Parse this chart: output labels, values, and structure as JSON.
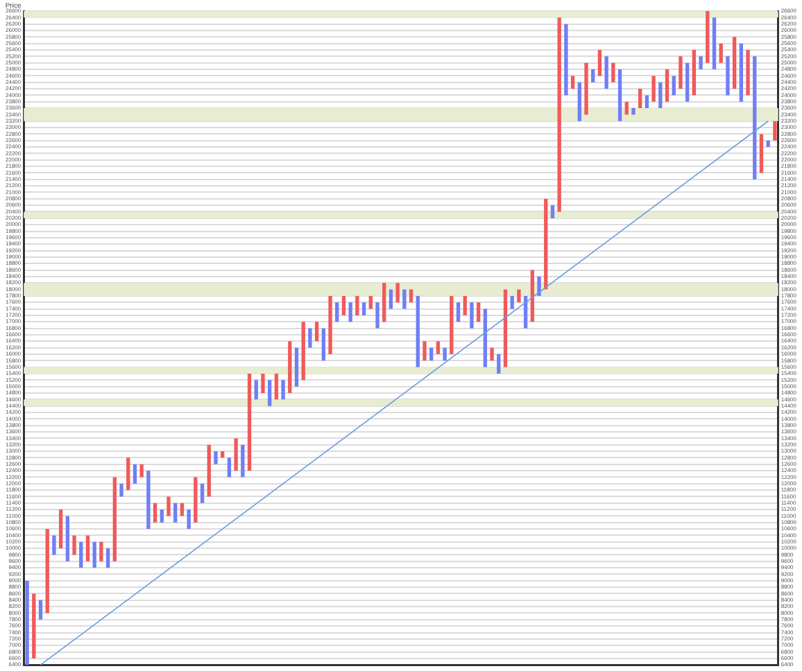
{
  "chart_data": {
    "type": "bar",
    "ylabel": "Price",
    "categories": [
      null,
      null,
      null,
      null,
      null,
      null,
      null,
      null,
      null,
      null,
      null,
      null,
      null,
      null,
      null,
      null,
      null,
      null,
      null,
      null,
      null,
      null,
      null,
      null,
      null,
      null,
      null,
      null,
      null,
      null,
      null,
      null,
      null,
      null,
      null,
      null,
      null,
      null,
      null,
      null,
      null,
      null,
      null,
      null,
      null,
      null,
      null,
      null,
      null,
      null,
      null,
      null,
      null,
      null,
      null,
      null,
      null,
      null,
      null,
      null,
      null,
      null,
      null,
      null,
      null,
      null,
      null,
      null,
      null,
      null,
      null,
      null,
      null,
      null,
      null,
      null,
      null,
      null,
      null,
      null,
      null,
      null,
      null,
      null,
      null,
      null,
      null,
      null,
      null,
      null,
      null,
      null,
      null,
      null,
      null,
      null,
      null,
      null,
      null,
      null,
      null,
      null,
      null,
      null,
      null,
      null,
      null,
      null,
      null,
      null,
      null,
      null
    ],
    "series": [
      {
        "base": [
          6400,
          6600,
          7800,
          8000,
          9800,
          10000,
          9600,
          9800,
          9400,
          9600,
          9400,
          9600,
          9400,
          9600,
          11600,
          11800,
          12000,
          12200,
          10600,
          10800,
          10800,
          11000,
          10800,
          11000,
          10600,
          10800,
          11400,
          11600,
          12600,
          12800,
          12200,
          12400,
          12200,
          12400,
          14600,
          14800,
          14400,
          14600,
          14600,
          14800,
          15000,
          15200,
          16200,
          16400,
          15800,
          16000,
          17000,
          17200,
          17000,
          17200,
          17200,
          17400,
          16800,
          17000,
          17400,
          17600,
          17400,
          17600,
          15600,
          15800,
          15800,
          16000,
          15800,
          16000,
          17000,
          17200,
          16800,
          17000,
          15600,
          15800,
          15400,
          15600,
          17400,
          17600,
          16800,
          17000,
          17800,
          18000,
          20200,
          20400,
          24000,
          24200,
          23200,
          23400,
          24400,
          24600,
          24200,
          24400,
          23200,
          23400,
          23400,
          23600,
          23600,
          23800,
          23600,
          23800,
          24000,
          24200,
          23800,
          24000,
          24800,
          25000,
          24800,
          25000,
          24000,
          24200,
          23800,
          24000,
          21400,
          21600,
          22400,
          22600
        ],
        "values": [
          2600,
          2000,
          600,
          2600,
          600,
          1200,
          1400,
          600,
          800,
          800,
          800,
          600,
          600,
          2600,
          400,
          1000,
          600,
          400,
          1800,
          600,
          400,
          600,
          600,
          400,
          600,
          1400,
          600,
          1600,
          400,
          200,
          600,
          1000,
          1000,
          3000,
          600,
          600,
          800,
          800,
          600,
          1600,
          1200,
          1800,
          600,
          600,
          1000,
          1800,
          600,
          600,
          600,
          600,
          400,
          400,
          800,
          1200,
          600,
          600,
          600,
          400,
          2200,
          600,
          400,
          400,
          400,
          1800,
          600,
          600,
          800,
          600,
          1800,
          400,
          600,
          2400,
          400,
          400,
          1000,
          1600,
          600,
          2800,
          400,
          6000,
          2200,
          400,
          1200,
          1600,
          400,
          800,
          1000,
          600,
          1600,
          400,
          200,
          600,
          400,
          800,
          800,
          1000,
          600,
          1000,
          1200,
          1400,
          400,
          1600,
          1600,
          600,
          1200,
          1600,
          1800,
          1400,
          3800,
          1200,
          200,
          600
        ],
        "colors": [
          "#6f7ff5",
          "#f05a5a",
          "#6f7ff5",
          "#f05a5a",
          "#6f7ff5",
          "#f05a5a",
          "#6f7ff5",
          "#f05a5a",
          "#6f7ff5",
          "#f05a5a",
          "#6f7ff5",
          "#f05a5a",
          "#6f7ff5",
          "#f05a5a",
          "#6f7ff5",
          "#f05a5a",
          "#6f7ff5",
          "#f05a5a",
          "#6f7ff5",
          "#f05a5a",
          "#6f7ff5",
          "#f05a5a",
          "#6f7ff5",
          "#f05a5a",
          "#6f7ff5",
          "#f05a5a",
          "#6f7ff5",
          "#f05a5a",
          "#6f7ff5",
          "#f05a5a",
          "#6f7ff5",
          "#f05a5a",
          "#6f7ff5",
          "#f05a5a",
          "#6f7ff5",
          "#f05a5a",
          "#6f7ff5",
          "#f05a5a",
          "#6f7ff5",
          "#f05a5a",
          "#6f7ff5",
          "#f05a5a",
          "#6f7ff5",
          "#f05a5a",
          "#6f7ff5",
          "#f05a5a",
          "#6f7ff5",
          "#f05a5a",
          "#6f7ff5",
          "#f05a5a",
          "#6f7ff5",
          "#f05a5a",
          "#6f7ff5",
          "#f05a5a",
          "#6f7ff5",
          "#f05a5a",
          "#6f7ff5",
          "#f05a5a",
          "#6f7ff5",
          "#f05a5a",
          "#6f7ff5",
          "#f05a5a",
          "#6f7ff5",
          "#f05a5a",
          "#6f7ff5",
          "#f05a5a",
          "#6f7ff5",
          "#f05a5a",
          "#6f7ff5",
          "#f05a5a",
          "#6f7ff5",
          "#f05a5a",
          "#6f7ff5",
          "#f05a5a",
          "#6f7ff5",
          "#f05a5a",
          "#6f7ff5",
          "#f05a5a",
          "#6f7ff5",
          "#f05a5a",
          "#6f7ff5",
          "#f05a5a",
          "#6f7ff5",
          "#f05a5a",
          "#6f7ff5",
          "#f05a5a",
          "#6f7ff5",
          "#f05a5a",
          "#6f7ff5",
          "#f05a5a",
          "#6f7ff5",
          "#f05a5a",
          "#6f7ff5",
          "#f05a5a",
          "#6f7ff5",
          "#f05a5a",
          "#6f7ff5",
          "#f05a5a",
          "#6f7ff5",
          "#f05a5a",
          "#6f7ff5",
          "#f05a5a",
          "#6f7ff5",
          "#f05a5a",
          "#6f7ff5",
          "#f05a5a",
          "#6f7ff5",
          "#f05a5a",
          "#6f7ff5",
          "#f05a5a",
          "#6f7ff5",
          "#f05a5a"
        ]
      },
      {
        "type": "line",
        "color": "#6a9be0",
        "values": [
          null,
          null,
          6400,
          null,
          null,
          null,
          null,
          null,
          null,
          null,
          null,
          null,
          null,
          null,
          null,
          null,
          null,
          null,
          null,
          null,
          null,
          null,
          null,
          null,
          null,
          null,
          null,
          null,
          null,
          null,
          null,
          null,
          null,
          null,
          null,
          null,
          null,
          null,
          null,
          null,
          null,
          null,
          null,
          null,
          null,
          null,
          null,
          null,
          null,
          null,
          null,
          null,
          null,
          null,
          null,
          null,
          null,
          null,
          null,
          null,
          null,
          null,
          null,
          null,
          null,
          null,
          null,
          null,
          null,
          null,
          null,
          null,
          null,
          null,
          null,
          null,
          null,
          null,
          null,
          null,
          null,
          null,
          null,
          null,
          null,
          null,
          null,
          null,
          null,
          null,
          null,
          null,
          null,
          null,
          null,
          null,
          null,
          null,
          null,
          null,
          null,
          null,
          null,
          null,
          null,
          null,
          null,
          null,
          null,
          null,
          23200,
          null
        ]
      }
    ],
    "ylim": [
      6400,
      26600
    ],
    "yticks": [
      6400,
      6600,
      6800,
      7000,
      7200,
      7400,
      7600,
      7800,
      8000,
      8200,
      8400,
      8600,
      8800,
      9000,
      9200,
      9400,
      9600,
      9800,
      10000,
      10200,
      10400,
      10600,
      10800,
      11000,
      11200,
      11400,
      11600,
      11800,
      12000,
      12200,
      12400,
      12600,
      12800,
      13000,
      13200,
      13400,
      13600,
      13800,
      14000,
      14200,
      14400,
      14600,
      14800,
      15000,
      15200,
      15400,
      15600,
      15800,
      16000,
      16200,
      16400,
      16600,
      16800,
      17000,
      17200,
      17400,
      17600,
      17800,
      18000,
      18200,
      18400,
      18600,
      18800,
      19000,
      19200,
      19400,
      19600,
      19800,
      20000,
      20200,
      20400,
      20600,
      20800,
      21000,
      21200,
      21400,
      21600,
      21800,
      22000,
      22200,
      22400,
      22600,
      22800,
      23000,
      23200,
      23400,
      23600,
      23800,
      24000,
      24200,
      24400,
      24600,
      24800,
      25000,
      25200,
      25400,
      25600,
      25800,
      26000,
      26200,
      26400,
      26600
    ],
    "y2lim": [
      6400,
      26600
    ],
    "y2ticks": [
      6400,
      6600,
      6800,
      7000,
      7200,
      7400,
      7600,
      7800,
      8000,
      8200,
      8400,
      8600,
      8800,
      9000,
      9200,
      9400,
      9600,
      9800,
      10000,
      10200,
      10400,
      10600,
      10800,
      11000,
      11200,
      11400,
      11600,
      11800,
      12000,
      12200,
      12400,
      12600,
      12800,
      13000,
      13200,
      13400,
      13600,
      13800,
      14000,
      14200,
      14400,
      14600,
      14800,
      15000,
      15200,
      15400,
      15600,
      15800,
      16000,
      16200,
      16400,
      16600,
      16800,
      17000,
      17200,
      17400,
      17600,
      17800,
      18000,
      18200,
      18400,
      18600,
      18800,
      19000,
      19200,
      19400,
      19600,
      19800,
      20000,
      20200,
      20400,
      20600,
      20800,
      21000,
      21200,
      21400,
      21600,
      21800,
      22000,
      22200,
      22400,
      22600,
      22800,
      23000,
      23200,
      23400,
      23600,
      23800,
      24000,
      24200,
      24400,
      24600,
      24800,
      25000,
      25200,
      25400,
      25600,
      25800,
      26000,
      26200,
      26400,
      26600
    ],
    "bands": [
      {
        "axis": "y",
        "from": 26400,
        "to": 26600,
        "color": "#e8edd2"
      },
      {
        "axis": "y",
        "from": 23200,
        "to": 23600,
        "color": "#e8edd2"
      },
      {
        "axis": "y",
        "from": 20200,
        "to": 20400,
        "color": "#e8edd2"
      },
      {
        "axis": "y",
        "from": 17800,
        "to": 18200,
        "color": "#e8edd2"
      },
      {
        "axis": "y",
        "from": 15400,
        "to": 15600,
        "color": "#e8edd2"
      },
      {
        "axis": "y",
        "from": 14400,
        "to": 14600,
        "color": "#e8edd2"
      }
    ],
    "grid": "y",
    "legend": false
  }
}
